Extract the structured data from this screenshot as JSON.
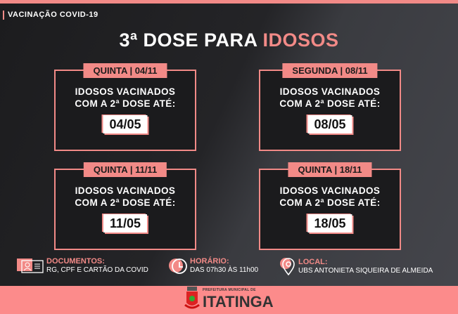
{
  "header": {
    "kicker": "VACINAÇÃO COVID-19",
    "title_main": "3ª DOSE PARA ",
    "title_highlight": "IDOSOS"
  },
  "cards": [
    {
      "day": "QUINTA | 04/11",
      "line1": "IDOSOS VACINADOS",
      "line2": "COM A 2ª DOSE ATÉ:",
      "date": "04/05"
    },
    {
      "day": "SEGUNDA | 08/11",
      "line1": "IDOSOS VACINADOS",
      "line2": "COM A 2ª DOSE ATÉ:",
      "date": "08/05"
    },
    {
      "day": "QUINTA | 11/11",
      "line1": "IDOSOS VACINADOS",
      "line2": "COM A 2ª DOSE ATÉ:",
      "date": "11/05"
    },
    {
      "day": "QUINTA | 18/11",
      "line1": "IDOSOS VACINADOS",
      "line2": "COM A 2ª DOSE ATÉ:",
      "date": "18/05"
    }
  ],
  "info": {
    "documents": {
      "label": "DOCUMENTOS:",
      "value": "RG, CPF E CARTÃO DA COVID",
      "icon": "id-card-icon"
    },
    "schedule": {
      "label": "HORÁRIO:",
      "value": "DAS 07h30 ÀS 11h00",
      "icon": "clock-icon"
    },
    "location": {
      "label": "LOCAL:",
      "value": "UBS ANTONIETA SIQUEIRA DE ALMEIDA",
      "icon": "map-pin-icon"
    }
  },
  "footer": {
    "prefix": "PREFEITURA MUNICIPAL DE",
    "city": "ITATINGA"
  },
  "colors": {
    "accent": "#f28a87",
    "background": "#222225",
    "band": "#fc8b8b"
  }
}
